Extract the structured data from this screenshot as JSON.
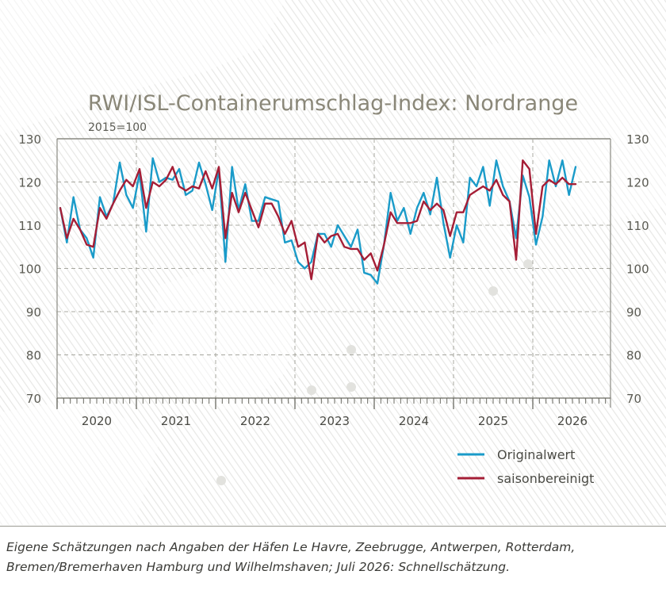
{
  "chart_data": {
    "type": "line",
    "title": "RWI/ISL-Containerumschlag-Index: Nordrange",
    "subtitle": "2015=100",
    "ylim": [
      70,
      130
    ],
    "yticks": [
      70,
      80,
      90,
      100,
      110,
      120,
      130
    ],
    "grid": true,
    "legend_position": "bottom-right",
    "start": "2020-01",
    "years": [
      "2020",
      "2021",
      "2022",
      "2023",
      "2024",
      "2025",
      "2026"
    ],
    "series": [
      {
        "name": "Originalwert",
        "color": "#1a9bc9",
        "values": [
          114.0,
          106.0,
          116.5,
          109.0,
          107.0,
          102.5,
          116.5,
          112.0,
          115.0,
          124.5,
          117.0,
          114.0,
          122.0,
          108.5,
          125.5,
          120.0,
          121.0,
          120.5,
          123.0,
          117.0,
          118.0,
          124.5,
          119.5,
          113.5,
          123.0,
          101.5,
          123.5,
          113.5,
          119.5,
          111.0,
          111.0,
          116.5,
          116.0,
          115.5,
          106.0,
          106.5,
          101.5,
          100.0,
          101.5,
          108.0,
          108.0,
          105.0,
          110.0,
          107.5,
          105.0,
          109.0,
          99.0,
          98.5,
          96.5,
          105.5,
          117.5,
          111.0,
          114.0,
          108.0,
          114.0,
          117.5,
          112.5,
          121.0,
          110.5,
          102.5,
          110.0,
          106.0,
          121.0,
          119.0,
          123.5,
          114.5,
          125.0,
          119.0,
          115.5,
          107.0,
          121.5,
          116.5,
          105.5,
          112.0,
          125.0,
          119.0,
          125.0,
          117.0,
          123.5
        ]
      },
      {
        "name": "saisonbereinigt",
        "color": "#a51e36",
        "values": [
          114.0,
          107.0,
          111.5,
          109.0,
          105.5,
          105.0,
          114.0,
          111.5,
          115.0,
          118.0,
          120.5,
          119.0,
          123.0,
          114.0,
          120.0,
          119.0,
          120.5,
          123.5,
          119.0,
          118.0,
          119.0,
          118.5,
          122.5,
          118.5,
          123.5,
          107.0,
          117.5,
          113.0,
          117.5,
          113.5,
          109.5,
          115.0,
          115.0,
          112.0,
          108.0,
          111.0,
          105.0,
          106.0,
          97.5,
          108.0,
          106.0,
          107.5,
          108.0,
          105.0,
          104.5,
          104.5,
          102.0,
          103.5,
          99.5,
          105.5,
          113.0,
          110.5,
          110.5,
          110.5,
          111.0,
          115.5,
          113.5,
          115.0,
          113.5,
          107.5,
          113.0,
          113.0,
          117.0,
          118.0,
          119.0,
          118.0,
          120.5,
          117.0,
          115.5,
          102.0,
          125.0,
          123.0,
          108.0,
          119.0,
          120.5,
          119.5,
          121.0,
          119.5,
          119.5
        ]
      }
    ]
  },
  "footnote": {
    "line1": "Eigene Schätzungen nach Angaben der Häfen Le Havre, Zeebrugge, Antwerpen, Rotterdam,",
    "line2": "Bremen/Bremerhaven Hamburg und Wilhelmshaven; Juli 2026: Schnellschätzung."
  }
}
